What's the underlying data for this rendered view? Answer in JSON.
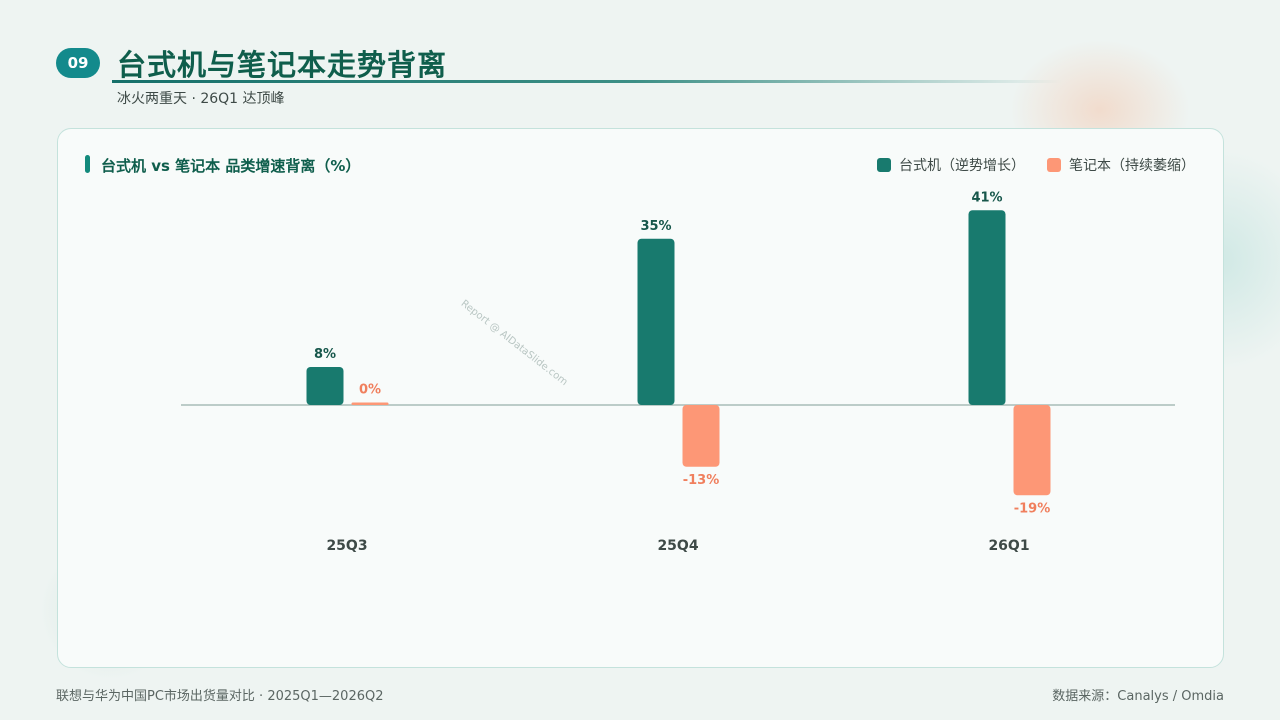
{
  "header": {
    "badge": "09",
    "title": "台式机与笔记本走势背离",
    "subtitle": "冰火两重天 · 26Q1 达顶峰"
  },
  "watermark": "Report @ AIDataSlide.com",
  "footer": {
    "left": "联想与华为中国PC市场出货量对比 · 2025Q1—2026Q2",
    "right": "数据来源：Canalys / Omdia"
  },
  "colors": {
    "desktop": "#187a6e",
    "laptop": "#fd9776",
    "desktop_label": "#17574b",
    "laptop_label": "#f07f5d",
    "axis": "#a7bcb8"
  },
  "chart_data": {
    "type": "bar",
    "title": "台式机 vs 笔记本 品类增速背离（%）",
    "categories": [
      "25Q3",
      "25Q4",
      "26Q1"
    ],
    "series": [
      {
        "name": "台式机（逆势增长）",
        "values": [
          8,
          35,
          41
        ],
        "labels": [
          "8%",
          "35%",
          "41%"
        ]
      },
      {
        "name": "笔记本（持续萎缩）",
        "values": [
          0,
          -13,
          -19
        ],
        "labels": [
          "0%",
          "-13%",
          "-19%"
        ]
      }
    ],
    "legend": "top-right",
    "grid": false
  }
}
